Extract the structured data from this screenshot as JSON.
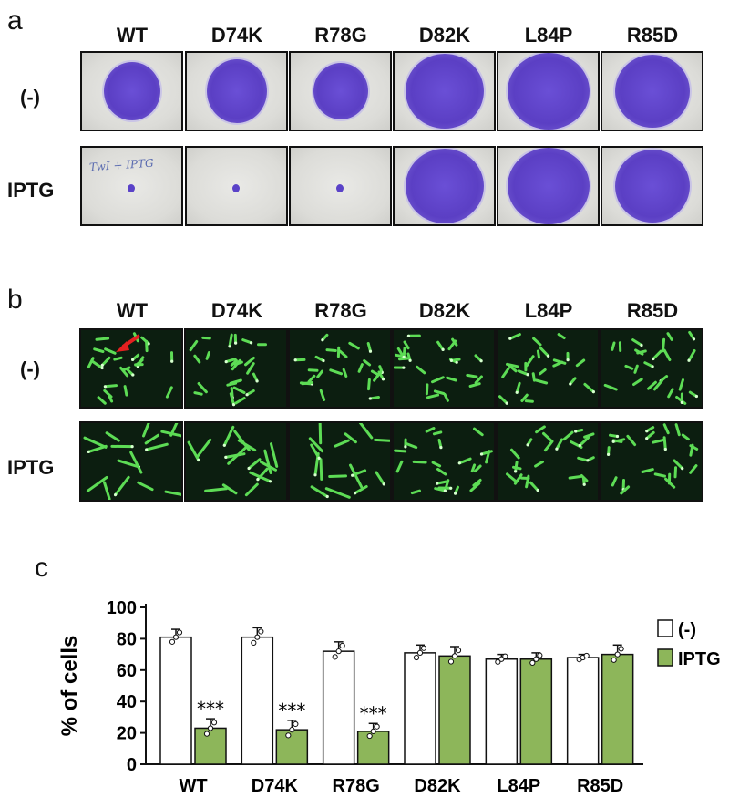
{
  "panels": {
    "a": "a",
    "b": "b",
    "c": "c"
  },
  "strains": [
    "WT",
    "D74K",
    "R78G",
    "D82K",
    "L84P",
    "R85D"
  ],
  "conditions": [
    "(-)",
    "IPTG"
  ],
  "plate_annotation": "TwI + IPTG",
  "colors": {
    "colony": "#6a4fd6",
    "cell": "#5ddc55",
    "ctrl_bar": "#ffffff",
    "iptg_bar": "#8db65a"
  },
  "chart_data": {
    "type": "bar",
    "categories": [
      "WT",
      "D74K",
      "R78G",
      "D82K",
      "L84P",
      "R85D"
    ],
    "series": [
      {
        "name": "(-)",
        "values": [
          81,
          81,
          72,
          71,
          67,
          68
        ],
        "errors": [
          5,
          6,
          6,
          5,
          3,
          2
        ]
      },
      {
        "name": "IPTG",
        "values": [
          23,
          22,
          21,
          69,
          67,
          70
        ],
        "errors": [
          6,
          6,
          5,
          6,
          4,
          6
        ]
      }
    ],
    "ylabel": "% of cells",
    "ylim": [
      0,
      100
    ],
    "yticks": [
      0,
      20,
      40,
      60,
      80,
      100
    ],
    "significance": [
      "***",
      "***",
      "***",
      "",
      "",
      ""
    ],
    "legend_placement": "right"
  }
}
